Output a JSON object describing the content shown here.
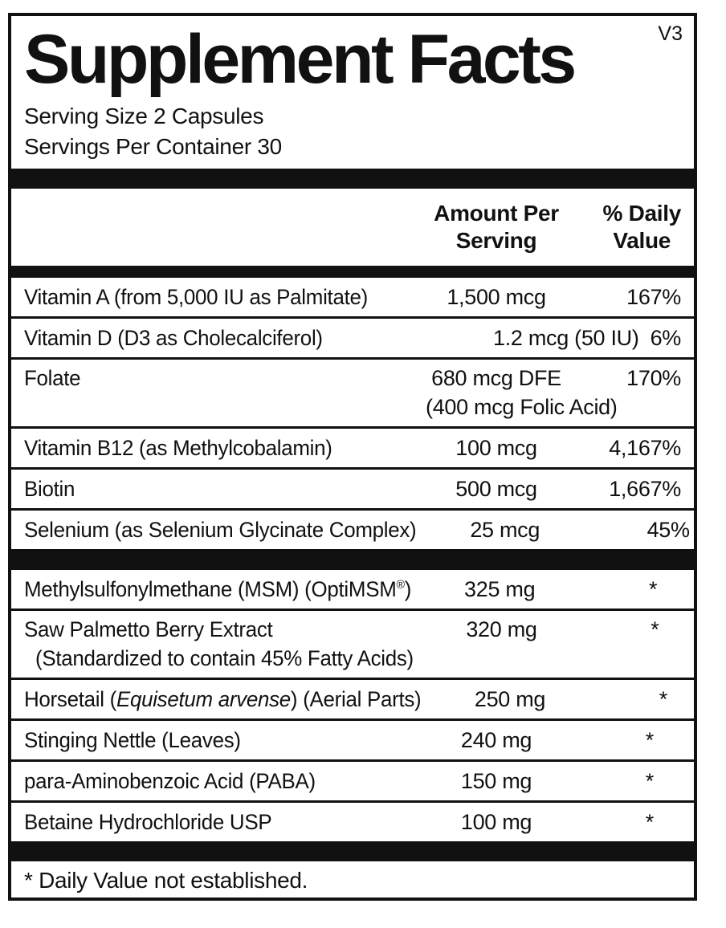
{
  "colors": {
    "ink": "#111111",
    "paper": "#ffffff"
  },
  "version_tag": "V3",
  "title": "Supplement Facts",
  "serving": {
    "size": "Serving Size 2 Capsules",
    "per_container": "Servings Per Container 30"
  },
  "header": {
    "amount_line1": "Amount Per",
    "amount_line2": "Serving",
    "dv_line1": "% Daily",
    "dv_line2": "Value"
  },
  "rows": [
    {
      "name": "Vitamin A (from 5,000 IU as Palmitate)",
      "amount": "1,500 mcg",
      "dv": "167%"
    },
    {
      "name": "Vitamin D (D3 as Cholecalciferol)",
      "amount": "1.2 mcg (50 IU)",
      "dv": "6%"
    },
    {
      "name": "Folate",
      "amount": "680 mcg DFE",
      "amount_line2": "(400 mcg Folic Acid)",
      "dv": "170%"
    },
    {
      "name": "Vitamin B12 (as Methylcobalamin)",
      "amount": "100 mcg",
      "dv": "4,167%"
    },
    {
      "name": "Biotin",
      "amount": "500 mcg",
      "dv": "1,667%"
    },
    {
      "name": "Selenium (as Selenium Glycinate Complex)",
      "amount": "25 mcg",
      "dv": "45%"
    },
    {
      "name_pre": "Methylsulfonylmethane (MSM) (OptiMSM",
      "name_sup": "®",
      "name_post": ")",
      "amount": "325 mg",
      "dv": "*"
    },
    {
      "name": "Saw Palmetto Berry Extract",
      "name_line2": "(Standardized to contain 45% Fatty Acids)",
      "amount": "320 mg",
      "dv": "*"
    },
    {
      "name_pre": "Horsetail (",
      "name_italic": "Equisetum arvense",
      "name_post": ") (Aerial Parts)",
      "amount": "250 mg",
      "dv": "*"
    },
    {
      "name": "Stinging Nettle (Leaves)",
      "amount": "240 mg",
      "dv": "*"
    },
    {
      "name": "para-Aminobenzoic Acid (PABA)",
      "amount": "150 mg",
      "dv": "*"
    },
    {
      "name": "Betaine Hydrochloride USP",
      "amount": "100 mg",
      "dv": "*"
    }
  ],
  "footnote": "* Daily Value not established."
}
